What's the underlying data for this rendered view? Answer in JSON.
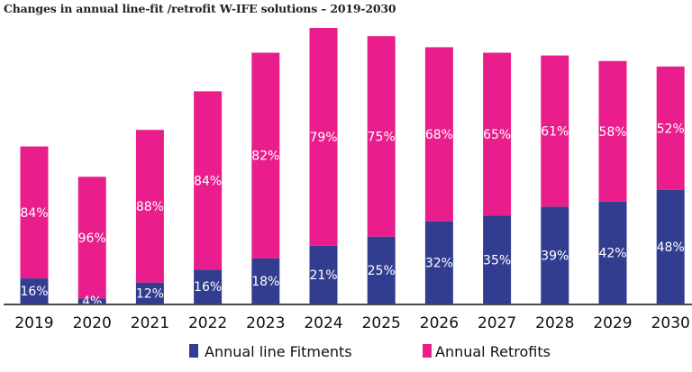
{
  "chart_data": {
    "type": "bar",
    "stacked": true,
    "title": "Changes in annual line-fit /retrofit W-IFE solutions – 2019-2030",
    "xlabel": "",
    "ylabel": "",
    "categories": [
      "2019",
      "2020",
      "2021",
      "2022",
      "2023",
      "2024",
      "2025",
      "2026",
      "2027",
      "2028",
      "2029",
      "2030"
    ],
    "relative_total_index": [
      57,
      46,
      63,
      77,
      91,
      100,
      97,
      93,
      91,
      90,
      88,
      86
    ],
    "series": [
      {
        "name": "Annual line Fitments",
        "color": "#333d8f",
        "values": [
          16,
          4,
          12,
          16,
          18,
          21,
          25,
          32,
          35,
          39,
          42,
          48
        ],
        "labels": [
          "16%",
          "4%",
          "12%",
          "16%",
          "18%",
          "21%",
          "25%",
          "32%",
          "35%",
          "39%",
          "42%",
          "48%"
        ]
      },
      {
        "name": "Annual Retrofits",
        "color": "#e91e8c",
        "values": [
          84,
          96,
          88,
          84,
          82,
          79,
          75,
          68,
          65,
          61,
          58,
          52
        ],
        "labels": [
          "84%",
          "96%",
          "88%",
          "84%",
          "82%",
          "79%",
          "75%",
          "68%",
          "65%",
          "61%",
          "58%",
          "52%"
        ]
      }
    ],
    "grid": false,
    "y_axis_shown": false,
    "legend_position": "bottom"
  }
}
